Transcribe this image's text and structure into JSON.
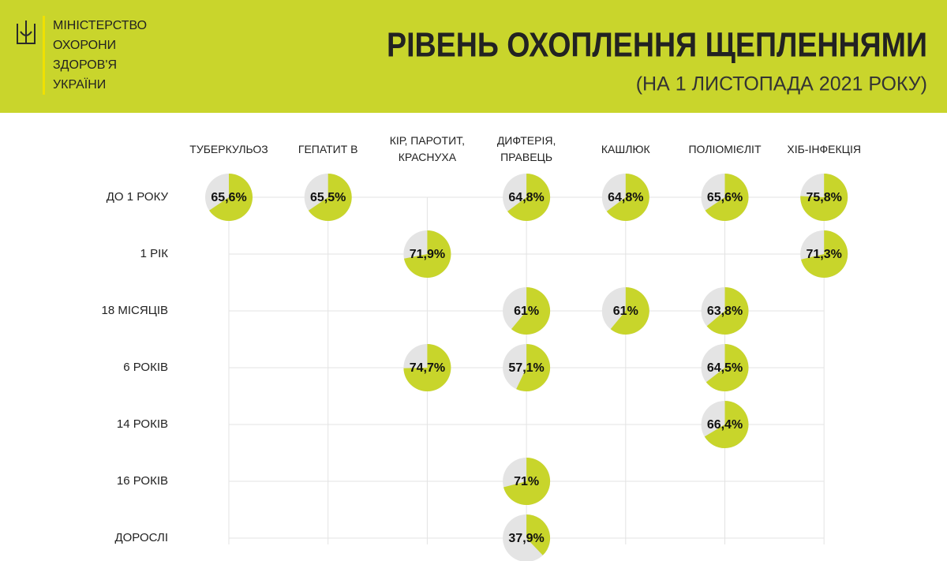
{
  "header": {
    "org": [
      "МІНІСТЕРСТВО",
      "ОХОРОНИ",
      "ЗДОРОВ'Я",
      "УКРАЇНИ"
    ]
  },
  "chart_data": {
    "type": "pie-grid",
    "title": "РІВЕНЬ ОХОПЛЕННЯ ЩЕПЛЕННЯМИ",
    "subtitle": "(НА 1 ЛИСТОПАДА 2021 РОКУ)",
    "categories": [
      "ТУБЕРКУЛЬОЗ",
      "ГЕПАТИТ В",
      "КІР, ПАРОТИТ, КРАСНУХА",
      "ДИФТЕРІЯ, ПРАВЕЦЬ",
      "КАШЛЮК",
      "ПОЛІОМІЄЛІТ",
      "ХІБ-ІНФЕКЦІЯ"
    ],
    "track_color": "#e4e4e4",
    "series": [
      {
        "name": "ДО 1 РОКУ",
        "color": "#c8d52b",
        "values": [
          65.6,
          65.5,
          null,
          64.8,
          64.8,
          65.6,
          75.8
        ],
        "value_labels": [
          "65,6%",
          "65,5%",
          null,
          "64,8%",
          "64,8%",
          "65,6%",
          "75,8%"
        ]
      },
      {
        "name": "1 РІК",
        "color": "#c8d52b",
        "values": [
          null,
          null,
          71.9,
          null,
          null,
          null,
          71.3
        ],
        "value_labels": [
          null,
          null,
          "71,9%",
          null,
          null,
          null,
          "71,3%"
        ]
      },
      {
        "name": "18 МІСЯЦІВ",
        "color": "#c8d52b",
        "values": [
          null,
          null,
          null,
          61,
          61,
          63.8,
          null
        ],
        "value_labels": [
          null,
          null,
          null,
          "61%",
          "61%",
          "63,8%",
          null
        ]
      },
      {
        "name": "6 РОКІВ",
        "color": "#c8d52b",
        "values": [
          null,
          null,
          74.7,
          57.1,
          null,
          64.5,
          null
        ],
        "value_labels": [
          null,
          null,
          "74,7%",
          "57,1%",
          null,
          "64,5%",
          null
        ]
      },
      {
        "name": "14 РОКІВ",
        "color": "#c8d52b",
        "values": [
          null,
          null,
          null,
          null,
          null,
          66.4,
          null
        ],
        "value_labels": [
          null,
          null,
          null,
          null,
          null,
          "66,4%",
          null
        ]
      },
      {
        "name": "16 РОКІВ",
        "color": "#c8d52b",
        "values": [
          null,
          null,
          null,
          71,
          null,
          null,
          null
        ],
        "value_labels": [
          null,
          null,
          null,
          "71%",
          null,
          null,
          null
        ]
      },
      {
        "name": "ДОРОСЛІ",
        "color": "#c8d52b",
        "values": [
          null,
          null,
          null,
          37.9,
          null,
          null,
          null
        ],
        "value_labels": [
          null,
          null,
          null,
          "37,9%",
          null,
          null,
          null
        ]
      }
    ]
  }
}
